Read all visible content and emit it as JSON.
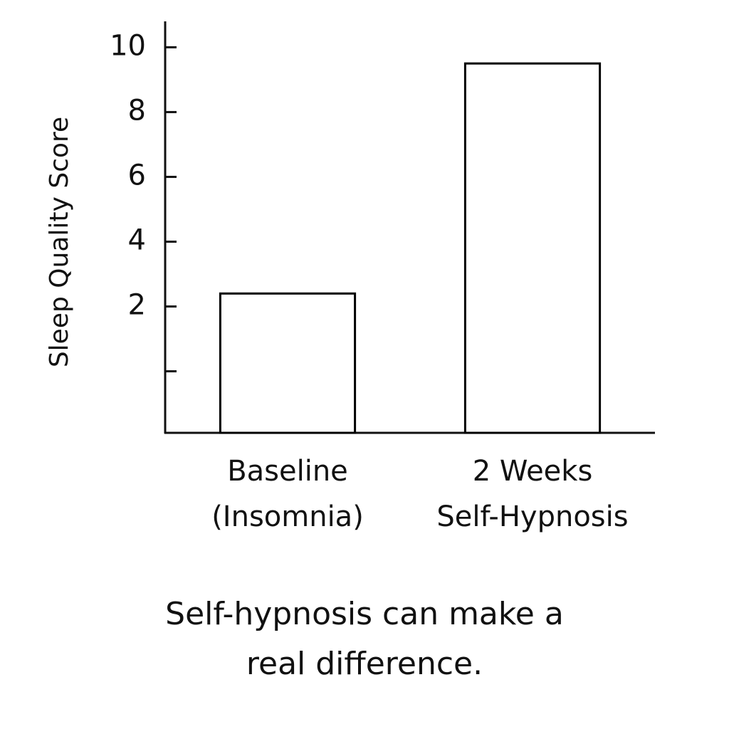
{
  "chart_data": {
    "type": "bar",
    "y_axis_label": "Sleep Quality Score",
    "caption": "Self-hypnosis can make a\nreal difference.",
    "categories": [
      "Baseline\n(Insomnia)",
      "2 Weeks\nSelf-Hypnosis"
    ],
    "values": [
      2.4,
      9.5
    ],
    "color": "#ffffff",
    "edge_color": "#000000",
    "ylim": [
      -1.9,
      10.8
    ],
    "yticks": [
      {
        "value": 0,
        "label": null
      },
      2,
      4,
      6,
      8,
      10
    ],
    "grid": false
  }
}
